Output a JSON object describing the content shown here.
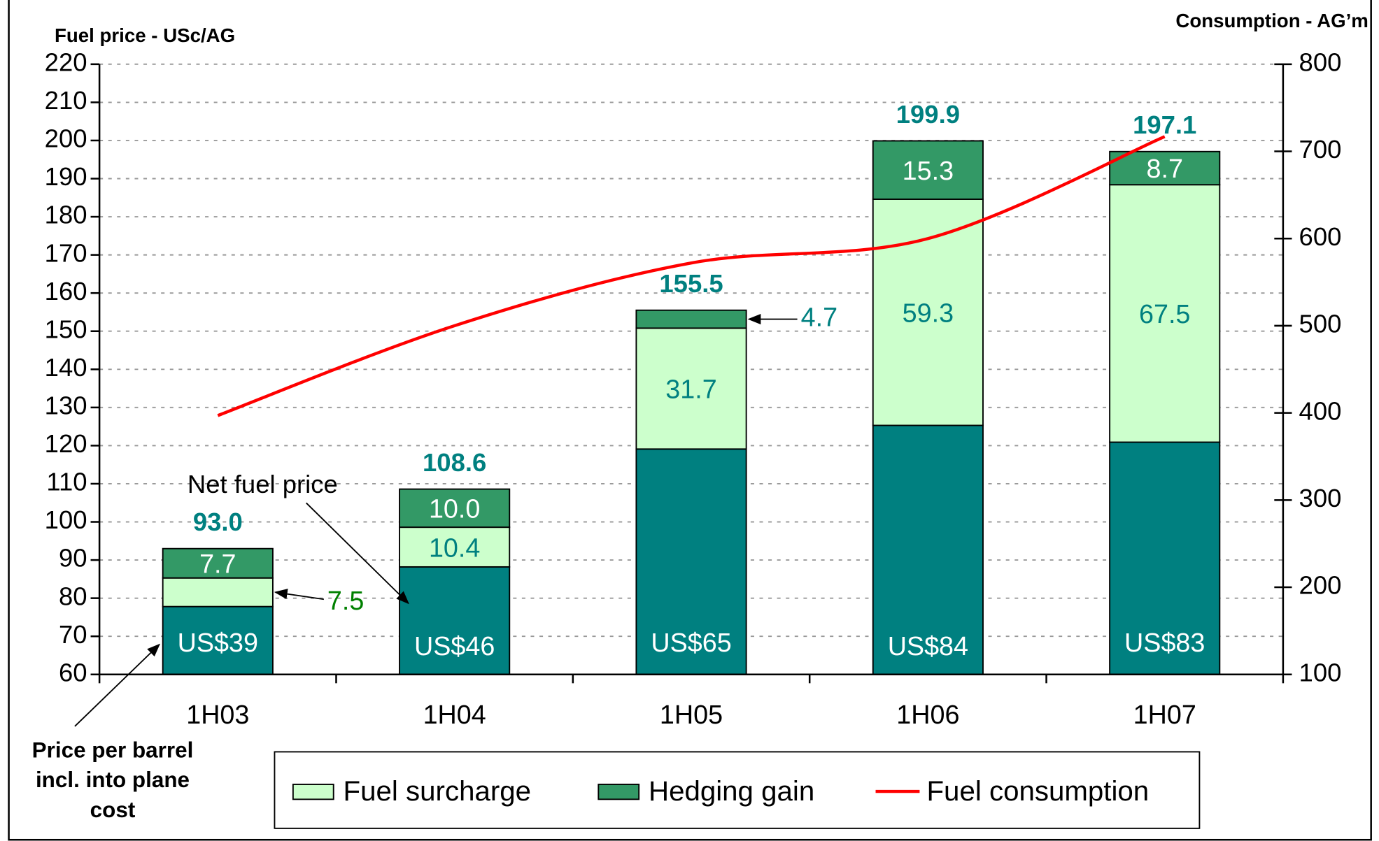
{
  "chart_data": {
    "type": "bar",
    "stacked": true,
    "y_label": "Fuel price - USc/AG",
    "y2_label": "Consumption - AG’m",
    "categories": [
      "1H03",
      "1H04",
      "1H05",
      "1H06",
      "1H07"
    ],
    "series": [
      {
        "color": "#008080",
        "values": [
          77.8,
          88.2,
          119.1,
          125.3,
          120.9
        ]
      },
      {
        "name": "Fuel surcharge",
        "color": "#ccffcc",
        "values": [
          7.5,
          10.4,
          31.7,
          59.3,
          67.5
        ],
        "value_labels": [
          "7.5",
          "10.4",
          "31.7",
          "59.3",
          "67.5"
        ]
      },
      {
        "name": "Hedging gain",
        "color": "#339966",
        "values": [
          7.7,
          10,
          4.7,
          15.3,
          8.7
        ],
        "value_labels": [
          "7.7",
          "10.0",
          "4.7",
          "15.3",
          "8.7"
        ]
      },
      {
        "name": "Fuel consumption",
        "type": "line",
        "axis": "y2",
        "color": "#ff0000",
        "values": [
          397,
          500,
          572,
          600,
          717
        ]
      }
    ],
    "totals": {
      "values": [
        93,
        108.6,
        155.5,
        199.9,
        197.1
      ],
      "value_labels": [
        "93.0",
        "108.6",
        "155.5",
        "199.9",
        "197.1"
      ],
      "color": "#008080"
    },
    "price_per_barrel": {
      "label": "Price per barrel incl. into plane cost",
      "values": [
        39,
        46,
        65,
        84,
        83
      ],
      "value_labels": [
        "US$39",
        "US$46",
        "US$65",
        "US$84",
        "US$83"
      ]
    },
    "annotation": "Net fuel price",
    "ylim": [
      60,
      220
    ],
    "yticks": [
      60,
      70,
      80,
      90,
      100,
      110,
      120,
      130,
      140,
      150,
      160,
      170,
      180,
      190,
      200,
      210,
      220
    ],
    "y2lim": [
      100,
      800
    ],
    "y2ticks": [
      100,
      200,
      300,
      400,
      500,
      600,
      700,
      800
    ],
    "grid": true,
    "legend": "bottom"
  }
}
